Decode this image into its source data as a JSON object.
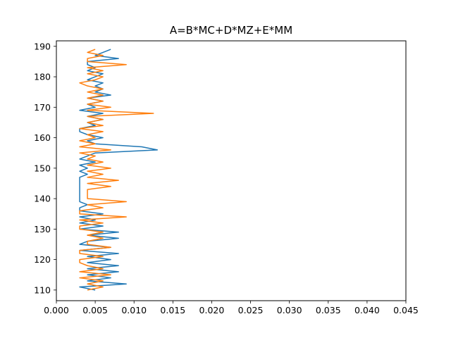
{
  "chart_data": {
    "type": "line",
    "title": "A=B*MC+D*MZ+E*MM",
    "xlabel": "",
    "ylabel": "",
    "xlim": [
      0,
      0.045
    ],
    "ylim": [
      106.5,
      191.8
    ],
    "xticks": [
      0.0,
      0.005,
      0.01,
      0.015,
      0.02,
      0.025,
      0.03,
      0.035,
      0.04,
      0.045
    ],
    "xtick_labels": [
      "0.000",
      "0.005",
      "0.010",
      "0.015",
      "0.020",
      "0.025",
      "0.030",
      "0.035",
      "0.040",
      "0.045"
    ],
    "yticks": [
      110,
      120,
      130,
      140,
      150,
      160,
      170,
      180,
      190
    ],
    "ytick_labels": [
      "110",
      "120",
      "130",
      "140",
      "150",
      "160",
      "170",
      "180",
      "190"
    ],
    "grid": false,
    "series": [
      {
        "color": "#1f77b4",
        "points": [
          [
            0.005,
            110
          ],
          [
            0.003,
            111
          ],
          [
            0.009,
            112
          ],
          [
            0.004,
            113
          ],
          [
            0.007,
            114
          ],
          [
            0.004,
            115
          ],
          [
            0.008,
            116
          ],
          [
            0.004,
            117
          ],
          [
            0.008,
            118
          ],
          [
            0.004,
            119
          ],
          [
            0.007,
            120
          ],
          [
            0.004,
            121
          ],
          [
            0.008,
            122
          ],
          [
            0.003,
            123
          ],
          [
            0.007,
            124
          ],
          [
            0.003,
            125
          ],
          [
            0.004,
            126
          ],
          [
            0.008,
            127
          ],
          [
            0.004,
            128
          ],
          [
            0.008,
            129
          ],
          [
            0.003,
            130
          ],
          [
            0.006,
            131
          ],
          [
            0.003,
            132
          ],
          [
            0.005,
            133
          ],
          [
            0.003,
            134
          ],
          [
            0.006,
            135
          ],
          [
            0.003,
            136
          ],
          [
            0.003,
            137
          ],
          [
            0.004,
            138
          ],
          [
            0.003,
            139
          ],
          [
            0.003,
            140
          ],
          [
            0.003,
            141
          ],
          [
            0.003,
            142
          ],
          [
            0.003,
            143
          ],
          [
            0.003,
            144
          ],
          [
            0.003,
            145
          ],
          [
            0.003,
            146
          ],
          [
            0.003,
            147
          ],
          [
            0.004,
            148
          ],
          [
            0.003,
            149
          ],
          [
            0.004,
            150
          ],
          [
            0.003,
            151
          ],
          [
            0.005,
            152
          ],
          [
            0.003,
            153
          ],
          [
            0.004,
            154
          ],
          [
            0.005,
            155
          ],
          [
            0.013,
            156
          ],
          [
            0.011,
            157
          ],
          [
            0.005,
            158
          ],
          [
            0.004,
            159
          ],
          [
            0.006,
            160
          ],
          [
            0.004,
            161
          ],
          [
            0.003,
            162
          ],
          [
            0.003,
            163
          ],
          [
            0.005,
            164
          ],
          [
            0.004,
            165
          ],
          [
            0.006,
            166
          ],
          [
            0.004,
            167
          ],
          [
            0.006,
            168
          ],
          [
            0.003,
            169
          ],
          [
            0.005,
            170
          ],
          [
            0.004,
            171
          ],
          [
            0.006,
            172
          ],
          [
            0.004,
            173
          ],
          [
            0.007,
            174
          ],
          [
            0.005,
            175
          ],
          [
            0.006,
            176
          ],
          [
            0.005,
            177
          ],
          [
            0.006,
            178
          ],
          [
            0.004,
            179
          ],
          [
            0.005,
            180
          ],
          [
            0.006,
            181
          ],
          [
            0.004,
            182
          ],
          [
            0.005,
            183
          ],
          [
            0.004,
            184
          ],
          [
            0.004,
            185
          ],
          [
            0.008,
            186
          ],
          [
            0.005,
            187
          ],
          [
            0.006,
            188
          ],
          [
            0.007,
            189
          ]
        ]
      },
      {
        "color": "#ff7f0e",
        "points": [
          [
            0.004,
            110
          ],
          [
            0.006,
            111
          ],
          [
            0.004,
            112
          ],
          [
            0.006,
            113
          ],
          [
            0.003,
            114
          ],
          [
            0.007,
            115
          ],
          [
            0.003,
            116
          ],
          [
            0.006,
            117
          ],
          [
            0.004,
            118
          ],
          [
            0.003,
            119
          ],
          [
            0.003,
            120
          ],
          [
            0.006,
            121
          ],
          [
            0.003,
            122
          ],
          [
            0.003,
            123
          ],
          [
            0.007,
            124
          ],
          [
            0.004,
            125
          ],
          [
            0.004,
            126
          ],
          [
            0.006,
            127
          ],
          [
            0.004,
            128
          ],
          [
            0.006,
            129
          ],
          [
            0.003,
            130
          ],
          [
            0.003,
            131
          ],
          [
            0.006,
            132
          ],
          [
            0.003,
            133
          ],
          [
            0.009,
            134
          ],
          [
            0.003,
            135
          ],
          [
            0.003,
            136
          ],
          [
            0.006,
            137
          ],
          [
            0.004,
            138
          ],
          [
            0.009,
            139
          ],
          [
            0.004,
            140
          ],
          [
            0.004,
            141
          ],
          [
            0.004,
            142
          ],
          [
            0.004,
            143
          ],
          [
            0.007,
            144
          ],
          [
            0.004,
            145
          ],
          [
            0.008,
            146
          ],
          [
            0.004,
            147
          ],
          [
            0.006,
            148
          ],
          [
            0.004,
            149
          ],
          [
            0.007,
            150
          ],
          [
            0.004,
            151
          ],
          [
            0.006,
            152
          ],
          [
            0.004,
            153
          ],
          [
            0.005,
            154
          ],
          [
            0.003,
            155
          ],
          [
            0.007,
            156
          ],
          [
            0.003,
            157
          ],
          [
            0.005,
            158
          ],
          [
            0.003,
            159
          ],
          [
            0.005,
            160
          ],
          [
            0.004,
            161
          ],
          [
            0.006,
            162
          ],
          [
            0.003,
            163
          ],
          [
            0.006,
            164
          ],
          [
            0.004,
            165
          ],
          [
            0.006,
            166
          ],
          [
            0.004,
            167
          ],
          [
            0.0125,
            168
          ],
          [
            0.004,
            169
          ],
          [
            0.007,
            170
          ],
          [
            0.004,
            171
          ],
          [
            0.006,
            172
          ],
          [
            0.004,
            173
          ],
          [
            0.006,
            174
          ],
          [
            0.004,
            175
          ],
          [
            0.006,
            176
          ],
          [
            0.004,
            177
          ],
          [
            0.003,
            178
          ],
          [
            0.005,
            179
          ],
          [
            0.006,
            180
          ],
          [
            0.004,
            181
          ],
          [
            0.006,
            182
          ],
          [
            0.004,
            183
          ],
          [
            0.009,
            184
          ],
          [
            0.004,
            185
          ],
          [
            0.004,
            186
          ],
          [
            0.006,
            187
          ],
          [
            0.004,
            188
          ],
          [
            0.005,
            189
          ]
        ]
      }
    ]
  }
}
